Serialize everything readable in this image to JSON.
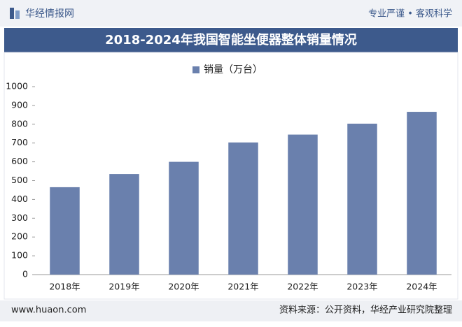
{
  "header": {
    "brand": "华经情报网",
    "slogan": "专业严谨 • 客观科学"
  },
  "chart_data": {
    "type": "bar",
    "title": "2018-2024年我国智能坐便器整体销量情况",
    "categories": [
      "2018年",
      "2019年",
      "2020年",
      "2021年",
      "2022年",
      "2023年",
      "2024年"
    ],
    "series": [
      {
        "name": "销量（万台）",
        "color": "#6a80ad",
        "values": [
          465,
          535,
          600,
          703,
          745,
          803,
          866
        ]
      }
    ],
    "ylim": [
      0,
      1000
    ],
    "yticks": [
      0,
      100,
      200,
      300,
      400,
      500,
      600,
      700,
      800,
      900,
      1000
    ],
    "grid": false
  },
  "footer": {
    "website": "www.huaon.com",
    "source": "资料来源：公开资料，华经产业研究院整理"
  }
}
